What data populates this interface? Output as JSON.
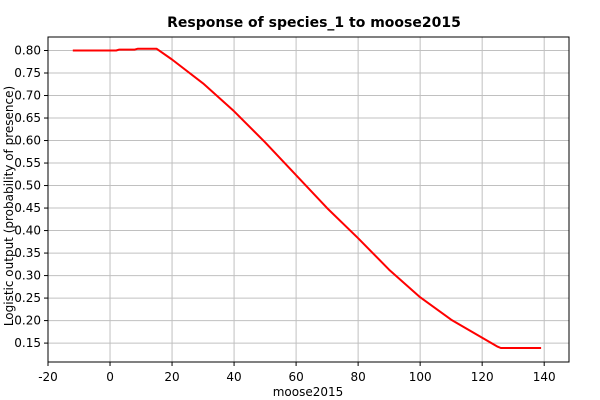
{
  "chart_data": {
    "type": "line",
    "title": "Response of species_1 to moose2015",
    "xlabel": "moose2015",
    "ylabel": "Logistic output (probability of presence)",
    "xlim": [
      -20,
      148
    ],
    "ylim": [
      0.108,
      0.83
    ],
    "x_ticks": [
      -20,
      0,
      20,
      40,
      60,
      80,
      100,
      120,
      140
    ],
    "y_ticks": [
      0.15,
      0.2,
      0.25,
      0.3,
      0.35,
      0.4,
      0.45,
      0.5,
      0.55,
      0.6,
      0.65,
      0.7,
      0.75,
      0.8
    ],
    "grid": true,
    "series": [
      {
        "color": "#ff0000",
        "x": [
          -12,
          -5,
          0,
          2,
          3,
          8,
          9,
          14,
          15,
          20,
          30,
          40,
          50,
          60,
          70,
          80,
          90,
          100,
          110,
          120,
          125,
          126,
          133,
          139
        ],
        "y": [
          0.8,
          0.8,
          0.8,
          0.8,
          0.802,
          0.802,
          0.804,
          0.804,
          0.804,
          0.78,
          0.727,
          0.665,
          0.596,
          0.523,
          0.45,
          0.383,
          0.313,
          0.252,
          0.202,
          0.162,
          0.142,
          0.139,
          0.139,
          0.139
        ]
      }
    ]
  }
}
